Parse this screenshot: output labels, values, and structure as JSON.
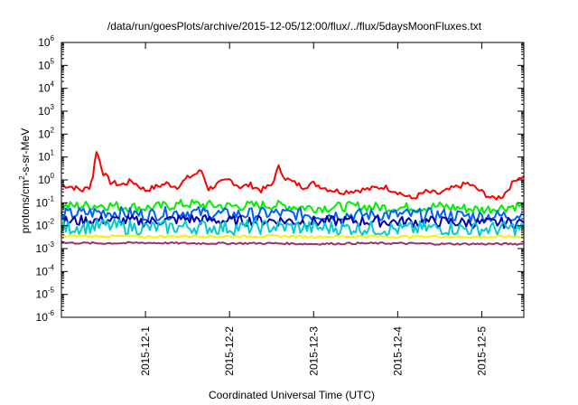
{
  "chart_data": {
    "type": "line",
    "title": "/data/run/goesPlots/archive/2015-12-05/12:00/flux/../flux/5daysMoonFluxes.txt",
    "xlabel": "Coordinated Universal Time (UTC)",
    "ylabel": {
      "prefix": "protons/cm",
      "sup": "2",
      "suffix": "-s-sr-MeV"
    },
    "x_type": "date",
    "xlim": [
      "2015-11-30 00:00",
      "2015-12-05 12:00"
    ],
    "x_ticks": [
      "2015-12-1",
      "2015-12-2",
      "2015-12-3",
      "2015-12-4",
      "2015-12-5"
    ],
    "y_scale": "log",
    "ylim": [
      1e-06,
      1000000.0
    ],
    "y_ticks": [
      {
        "base": "10",
        "exp": "-6"
      },
      {
        "base": "10",
        "exp": "-5"
      },
      {
        "base": "10",
        "exp": "-4"
      },
      {
        "base": "10",
        "exp": "-3"
      },
      {
        "base": "10",
        "exp": "-2"
      },
      {
        "base": "10",
        "exp": "-1"
      },
      {
        "base": "10",
        "exp": "0"
      },
      {
        "base": "10",
        "exp": "1"
      },
      {
        "base": "10",
        "exp": "2"
      },
      {
        "base": "10",
        "exp": "3"
      },
      {
        "base": "10",
        "exp": "4"
      },
      {
        "base": "10",
        "exp": "5"
      },
      {
        "base": "10",
        "exp": "6"
      }
    ],
    "grid": false,
    "legend": "none",
    "series": [
      {
        "color": "#ff0000",
        "x": [
          "2015-11-30 00:00",
          "2015-11-30 03:00",
          "2015-11-30 06:00",
          "2015-11-30 08:00",
          "2015-11-30 09:00",
          "2015-11-30 10:00",
          "2015-11-30 11:00",
          "2015-11-30 12:00",
          "2015-11-30 14:00",
          "2015-11-30 17:00",
          "2015-11-30 20:00",
          "2015-12-01 00:00",
          "2015-12-01 03:00",
          "2015-12-01 06:00",
          "2015-12-01 09:00",
          "2015-12-01 12:00",
          "2015-12-01 16:00",
          "2015-12-01 18:00",
          "2015-12-01 21:00",
          "2015-12-02 00:00",
          "2015-12-02 03:00",
          "2015-12-02 06:00",
          "2015-12-02 09:00",
          "2015-12-02 12:00",
          "2015-12-02 14:00",
          "2015-12-02 16:00",
          "2015-12-02 18:00",
          "2015-12-02 21:00",
          "2015-12-03 00:00",
          "2015-12-03 04:00",
          "2015-12-03 08:00",
          "2015-12-03 12:00",
          "2015-12-03 16:00",
          "2015-12-03 20:00",
          "2015-12-04 00:00",
          "2015-12-04 04:00",
          "2015-12-04 08:00",
          "2015-12-04 12:00",
          "2015-12-04 16:00",
          "2015-12-04 20:00",
          "2015-12-05 00:00",
          "2015-12-05 03:00",
          "2015-12-05 06:00",
          "2015-12-05 08:00",
          "2015-12-05 10:00",
          "2015-12-05 12:00"
        ],
        "y": [
          0.6,
          0.5,
          0.35,
          0.5,
          1.5,
          20,
          6,
          2,
          0.8,
          0.6,
          0.9,
          0.35,
          0.5,
          0.7,
          0.5,
          1.2,
          2.5,
          0.4,
          0.7,
          1.0,
          0.5,
          0.6,
          0.35,
          0.6,
          3.5,
          1.2,
          0.8,
          0.5,
          0.7,
          0.4,
          0.3,
          0.35,
          0.4,
          0.5,
          0.3,
          0.15,
          0.3,
          0.25,
          0.45,
          0.7,
          0.3,
          0.15,
          0.2,
          0.5,
          1.2,
          1.5
        ]
      },
      {
        "color": "#00ee00",
        "x": [
          "2015-11-30 00:00",
          "2015-11-30 12:00",
          "2015-12-01 00:00",
          "2015-12-01 12:00",
          "2015-12-02 00:00",
          "2015-12-02 12:00",
          "2015-12-03 00:00",
          "2015-12-03 12:00",
          "2015-12-04 00:00",
          "2015-12-04 12:00",
          "2015-12-05 00:00",
          "2015-12-05 12:00"
        ],
        "y": [
          0.07,
          0.08,
          0.06,
          0.09,
          0.07,
          0.08,
          0.06,
          0.07,
          0.06,
          0.07,
          0.05,
          0.08
        ]
      },
      {
        "color": "#0060ff",
        "x": [
          "2015-11-30 00:00",
          "2015-11-30 12:00",
          "2015-12-01 00:00",
          "2015-12-01 12:00",
          "2015-12-02 00:00",
          "2015-12-02 12:00",
          "2015-12-03 00:00",
          "2015-12-03 12:00",
          "2015-12-04 00:00",
          "2015-12-04 12:00",
          "2015-12-05 00:00",
          "2015-12-05 12:00"
        ],
        "y": [
          0.03,
          0.04,
          0.03,
          0.04,
          0.03,
          0.035,
          0.03,
          0.03,
          0.03,
          0.03,
          0.025,
          0.03
        ]
      },
      {
        "color": "#0000aa",
        "x": [
          "2015-11-30 00:00",
          "2015-11-30 12:00",
          "2015-12-01 00:00",
          "2015-12-01 12:00",
          "2015-12-02 00:00",
          "2015-12-02 12:00",
          "2015-12-03 00:00",
          "2015-12-03 12:00",
          "2015-12-04 00:00",
          "2015-12-04 12:00",
          "2015-12-05 00:00",
          "2015-12-05 12:00"
        ],
        "y": [
          0.015,
          0.018,
          0.015,
          0.02,
          0.016,
          0.017,
          0.015,
          0.016,
          0.015,
          0.015,
          0.013,
          0.014
        ]
      },
      {
        "color": "#00cccc",
        "x": [
          "2015-11-30 00:00",
          "2015-11-30 12:00",
          "2015-12-01 00:00",
          "2015-12-01 12:00",
          "2015-12-02 00:00",
          "2015-12-02 12:00",
          "2015-12-03 00:00",
          "2015-12-03 12:00",
          "2015-12-04 00:00",
          "2015-12-04 12:00",
          "2015-12-05 00:00",
          "2015-12-05 12:00"
        ],
        "y": [
          0.008,
          0.01,
          0.008,
          0.009,
          0.008,
          0.009,
          0.008,
          0.008,
          0.007,
          0.008,
          0.007,
          0.008
        ]
      },
      {
        "color": "#ffee00",
        "x": [
          "2015-11-30 00:00",
          "2015-11-30 12:00",
          "2015-12-01 00:00",
          "2015-12-01 12:00",
          "2015-12-02 00:00",
          "2015-12-02 12:00",
          "2015-12-03 00:00",
          "2015-12-03 12:00",
          "2015-12-04 00:00",
          "2015-12-04 12:00",
          "2015-12-05 00:00",
          "2015-12-05 12:00"
        ],
        "y": [
          0.0035,
          0.0035,
          0.0033,
          0.0035,
          0.0034,
          0.0035,
          0.0033,
          0.0034,
          0.0033,
          0.0034,
          0.0032,
          0.0034
        ]
      },
      {
        "color": "#993366",
        "x": [
          "2015-11-30 00:00",
          "2015-11-30 12:00",
          "2015-12-01 00:00",
          "2015-12-01 12:00",
          "2015-12-02 00:00",
          "2015-12-02 12:00",
          "2015-12-03 00:00",
          "2015-12-03 12:00",
          "2015-12-04 00:00",
          "2015-12-04 12:00",
          "2015-12-05 00:00",
          "2015-12-05 12:00"
        ],
        "y": [
          0.0018,
          0.0017,
          0.0018,
          0.0017,
          0.0017,
          0.0017,
          0.0016,
          0.0017,
          0.0017,
          0.0016,
          0.0016,
          0.0016
        ]
      }
    ]
  }
}
